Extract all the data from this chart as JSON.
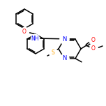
{
  "bg_color": "#ffffff",
  "line_color": "#000000",
  "atom_colors": {
    "N": "#0000ff",
    "O": "#ff0000",
    "S": "#ffa500"
  },
  "figsize": [
    1.52,
    1.52
  ],
  "dpi": 100
}
